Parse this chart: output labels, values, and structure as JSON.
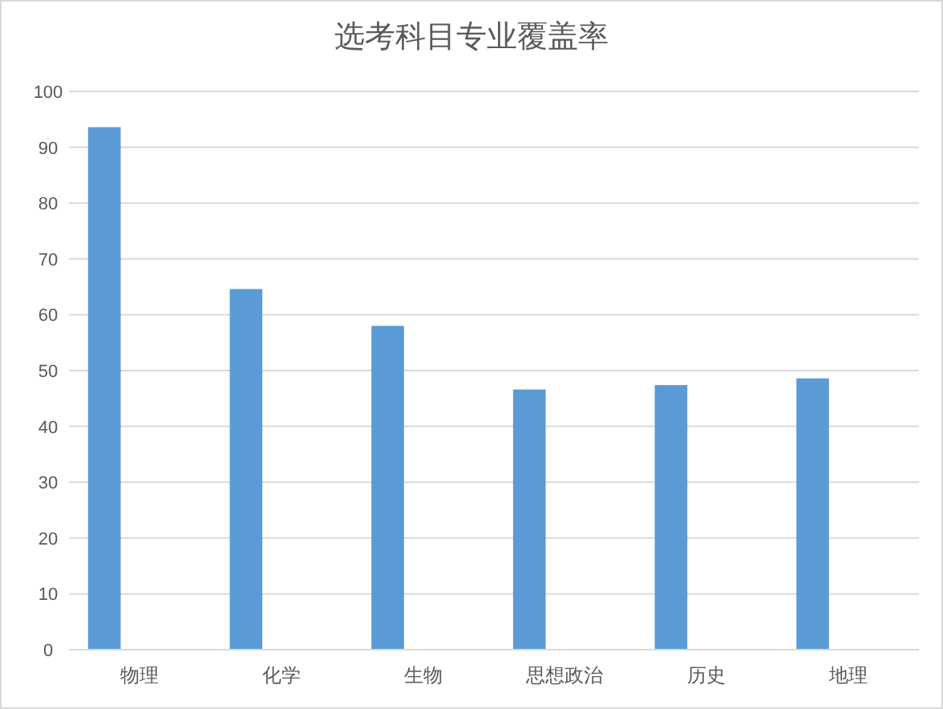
{
  "chart_data": {
    "type": "bar",
    "title": "选考科目专业覆盖率",
    "categories": [
      "物理",
      "化学",
      "生物",
      "思想政治",
      "历史",
      "地理"
    ],
    "values": [
      93.6,
      64.6,
      58.0,
      46.6,
      47.4,
      48.6
    ],
    "color": "#5b9bd5",
    "ylim": [
      0,
      100
    ],
    "yticks": [
      0,
      10,
      20,
      30,
      40,
      50,
      60,
      70,
      80,
      90,
      100
    ],
    "grid": "y"
  }
}
